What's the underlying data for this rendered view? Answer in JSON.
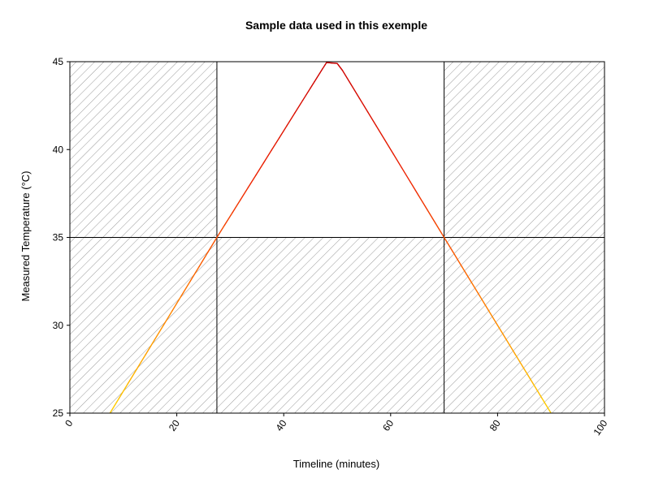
{
  "chart_data": {
    "type": "line",
    "title": "Sample data used in this exemple",
    "xlabel": "Timeline (minutes)",
    "ylabel": "Measured Temperature (°C)",
    "xlim": [
      0,
      100
    ],
    "ylim": [
      25,
      45
    ],
    "x_ticks": [
      "0",
      "20",
      "40",
      "60",
      "80",
      "100"
    ],
    "y_ticks": [
      "25",
      "30",
      "35",
      "40",
      "45"
    ],
    "grid": false,
    "threshold_lines": {
      "x": [
        27.5,
        70
      ],
      "y": [
        35
      ]
    },
    "hatched_regions": "outside the zone x 27.5–70 and y above 35",
    "series": [
      {
        "color_gradient": [
          "#ffd000",
          "#ff7700",
          "#ee2200",
          "#cc0000"
        ],
        "x": [
          7.5,
          27.5,
          45,
          48,
          50,
          51,
          70,
          90
        ],
        "y": [
          25,
          35,
          43.5,
          44.95,
          44.9,
          44.5,
          35,
          25
        ]
      }
    ]
  }
}
